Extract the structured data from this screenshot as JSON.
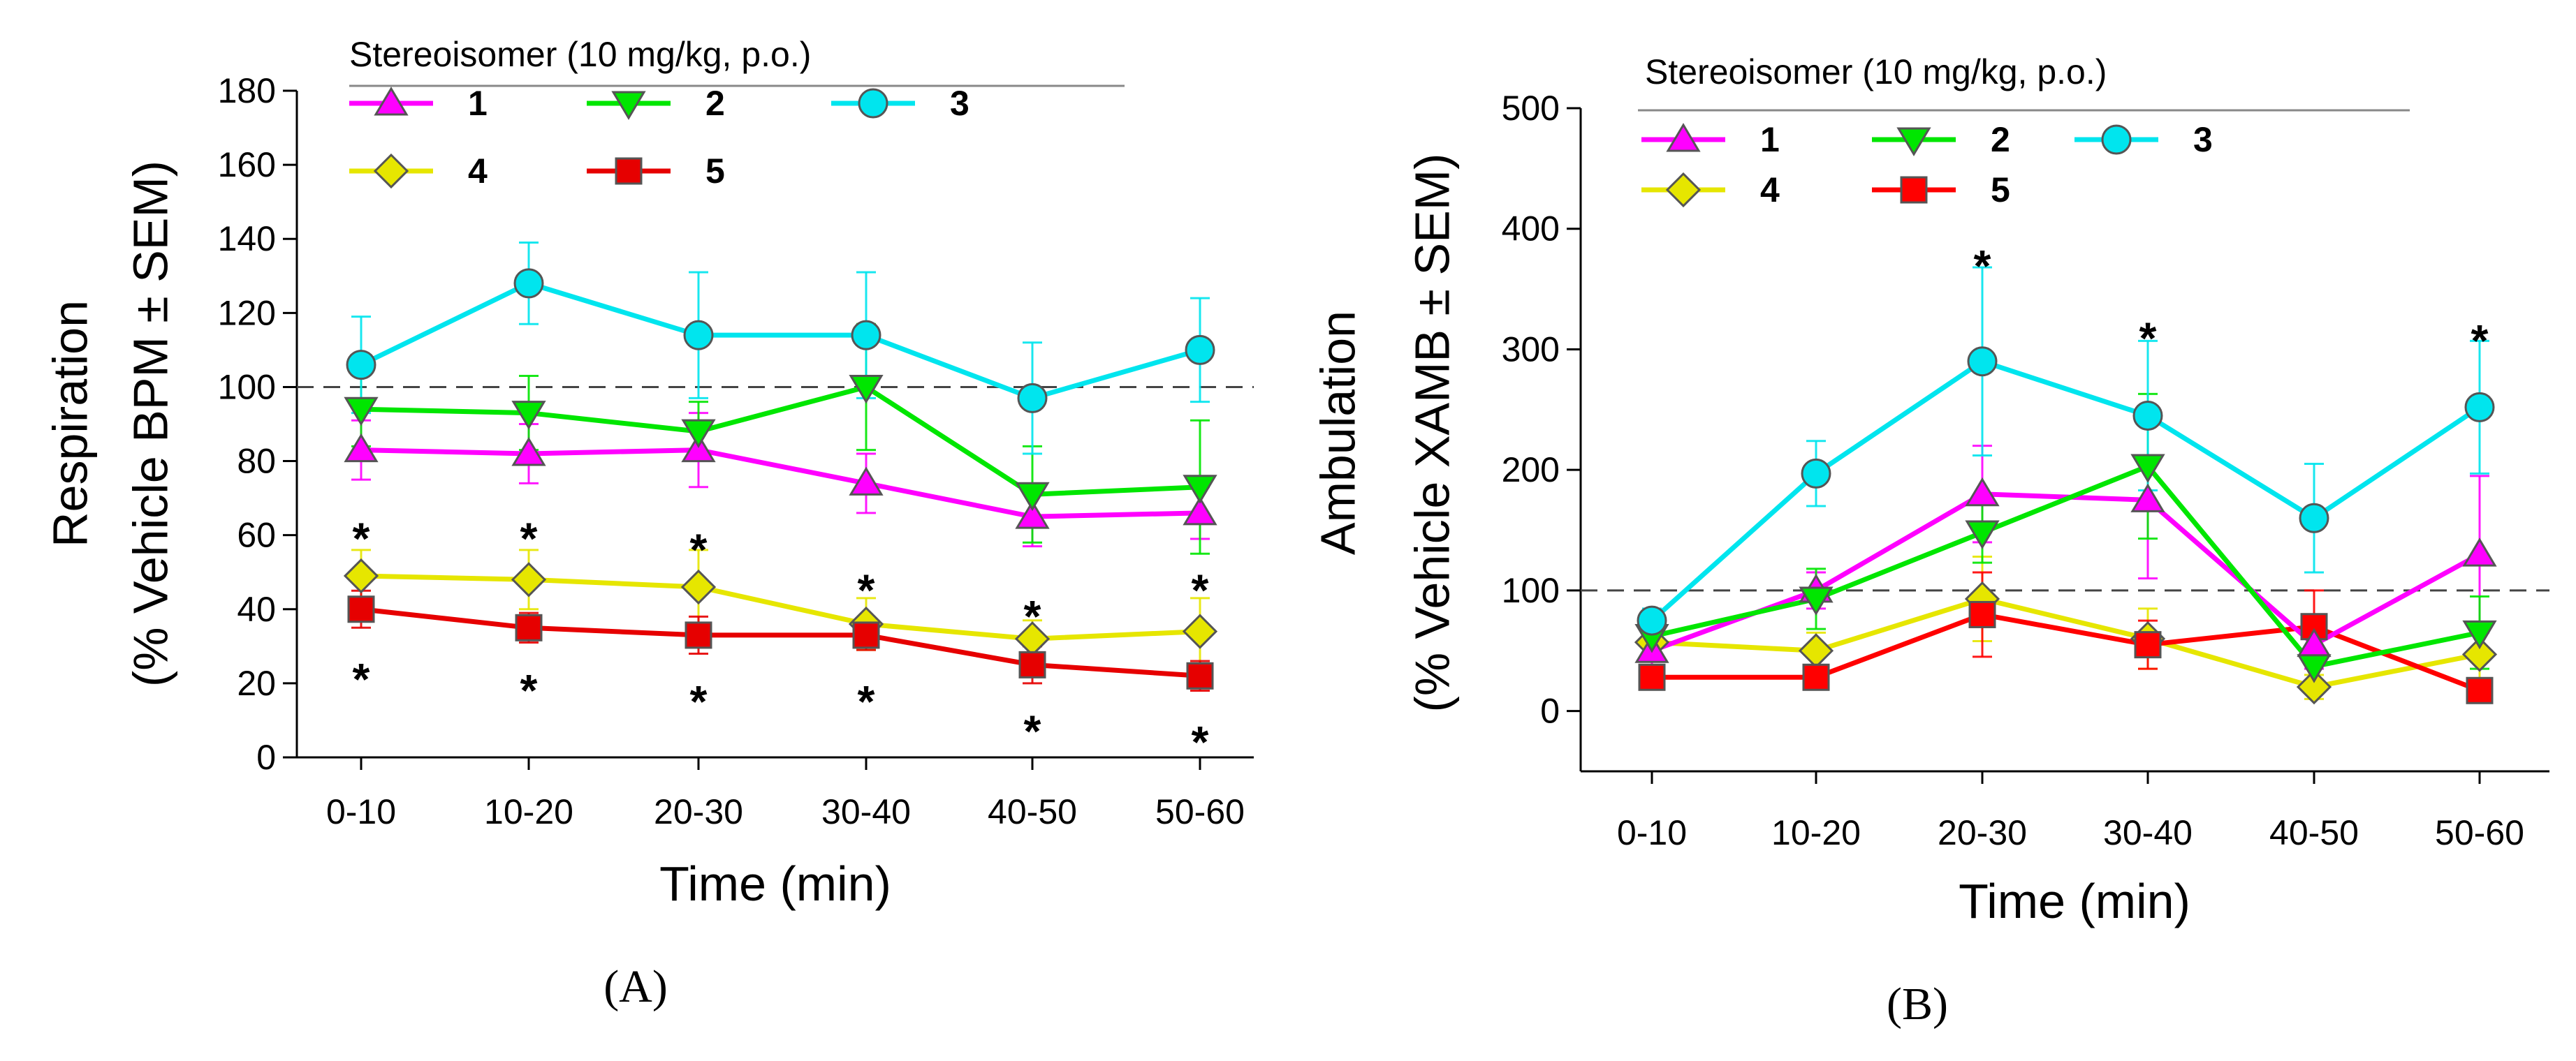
{
  "chart_data": [
    {
      "type": "line",
      "panel": "A",
      "panel_label": "(A)",
      "categories": [
        "0-10",
        "10-20",
        "20-30",
        "30-40",
        "40-50",
        "50-60"
      ],
      "xlabel": "Time (min)",
      "ylabel_line1": "Respiration",
      "ylabel_line2": "(% Vehicle BPM ± SEM)",
      "ylim": [
        0,
        180
      ],
      "yticks": [
        0,
        20,
        40,
        60,
        80,
        100,
        120,
        140,
        160,
        180
      ],
      "reference_line": 100,
      "legend_title": "Stereoisomer (10 mg/kg, p.o.)",
      "series": [
        {
          "name": "1",
          "marker": "triangle-up",
          "color": "#ff00ff",
          "values": [
            83,
            82,
            83,
            74,
            65,
            66
          ],
          "errors": [
            8,
            8,
            10,
            8,
            8,
            7
          ]
        },
        {
          "name": "2",
          "marker": "triangle-down",
          "color": "#00e600",
          "values": [
            94,
            93,
            88,
            100,
            71,
            73
          ],
          "errors": [
            10,
            10,
            8,
            17,
            13,
            18
          ]
        },
        {
          "name": "3",
          "marker": "circle",
          "color": "#00e5ee",
          "values": [
            106,
            128,
            114,
            114,
            97,
            110
          ],
          "errors": [
            13,
            11,
            17,
            17,
            15,
            14
          ]
        },
        {
          "name": "4",
          "marker": "diamond",
          "color": "#e6e600",
          "values": [
            49,
            48,
            46,
            36,
            32,
            34
          ],
          "errors": [
            7,
            8,
            10,
            7,
            5,
            9
          ]
        },
        {
          "name": "5",
          "marker": "square",
          "color": "#e60000",
          "values": [
            40,
            35,
            33,
            33,
            25,
            22
          ],
          "errors": [
            5,
            4,
            5,
            4,
            5,
            4
          ]
        }
      ],
      "annotations": [
        {
          "text": "*",
          "x": "0-10",
          "y": 61
        },
        {
          "text": "*",
          "x": "10-20",
          "y": 61
        },
        {
          "text": "*",
          "x": "20-30",
          "y": 58
        },
        {
          "text": "*",
          "x": "30-40",
          "y": 47
        },
        {
          "text": "*",
          "x": "40-50",
          "y": 40
        },
        {
          "text": "*",
          "x": "50-60",
          "y": 47
        },
        {
          "text": "*",
          "x": "0-10",
          "y": 23
        },
        {
          "text": "*",
          "x": "10-20",
          "y": 20
        },
        {
          "text": "*",
          "x": "20-30",
          "y": 17
        },
        {
          "text": "*",
          "x": "30-40",
          "y": 17
        },
        {
          "text": "*",
          "x": "40-50",
          "y": 9
        },
        {
          "text": "*",
          "x": "50-60",
          "y": 6
        }
      ]
    },
    {
      "type": "line",
      "panel": "B",
      "panel_label": "(B)",
      "categories": [
        "0-10",
        "10-20",
        "20-30",
        "30-40",
        "40-50",
        "50-60"
      ],
      "xlabel": "Time (min)",
      "ylabel_line1": "Ambulation",
      "ylabel_line2": "(% Vehicle XAMB ± SEM)",
      "ylim": [
        -50,
        500
      ],
      "yticks": [
        0,
        100,
        200,
        300,
        400,
        500
      ],
      "reference_line": 100,
      "legend_title": "Stereoisomer (10 mg/kg, p.o.)",
      "series": [
        {
          "name": "1",
          "marker": "triangle-up",
          "color": "#ff00ff",
          "values": [
            50,
            100,
            180,
            175,
            55,
            130
          ],
          "errors": [
            12,
            15,
            40,
            65,
            20,
            65
          ]
        },
        {
          "name": "2",
          "marker": "triangle-down",
          "color": "#00e600",
          "values": [
            62,
            93,
            148,
            203,
            37,
            65
          ],
          "errors": [
            12,
            25,
            25,
            60,
            15,
            30
          ]
        },
        {
          "name": "3",
          "marker": "circle",
          "color": "#00e5ee",
          "values": [
            75,
            197,
            290,
            245,
            160,
            252
          ],
          "errors": [
            10,
            27,
            78,
            62,
            45,
            55
          ]
        },
        {
          "name": "4",
          "marker": "diamond",
          "color": "#e6e600",
          "values": [
            57,
            50,
            93,
            60,
            20,
            47
          ],
          "errors": [
            15,
            15,
            35,
            25,
            10,
            20
          ]
        },
        {
          "name": "5",
          "marker": "square",
          "color": "#ff0000",
          "values": [
            28,
            28,
            80,
            55,
            70,
            17
          ],
          "errors": [
            8,
            8,
            35,
            20,
            30,
            8
          ]
        }
      ],
      "annotations": [
        {
          "text": "*",
          "x": "20-30",
          "y": 375
        },
        {
          "text": "*",
          "x": "30-40",
          "y": 315
        },
        {
          "text": "*",
          "x": "50-60",
          "y": 313
        }
      ]
    }
  ]
}
